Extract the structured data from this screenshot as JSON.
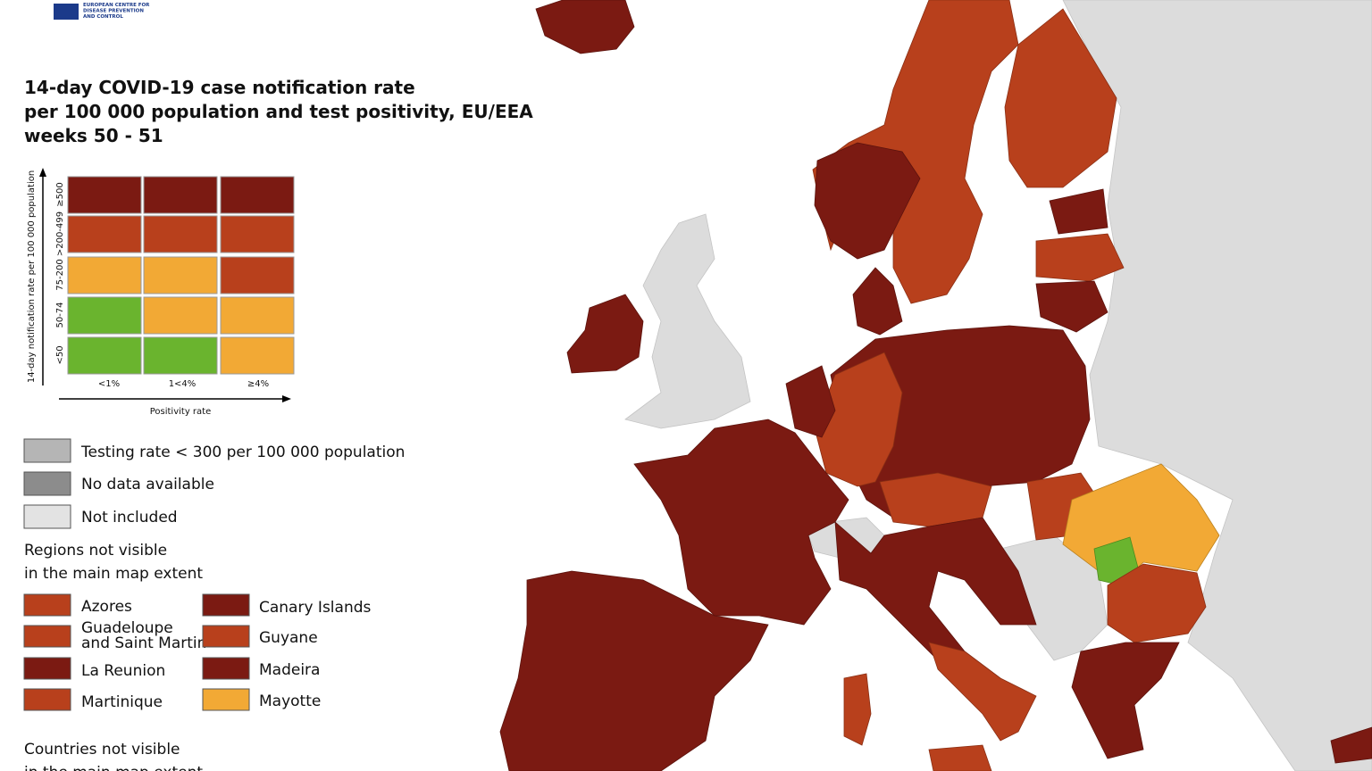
{
  "header": {
    "logo": [
      "EUROPEAN CENTRE FOR",
      "DISEASE PREVENTION",
      "AND CONTROL"
    ],
    "title": [
      "14-day COVID-19 case notification rate",
      "per 100 000 population and test positivity, EU/EEA",
      "weeks 50 - 51"
    ]
  },
  "matrix": {
    "y_axis_label": "14-day notification rate per 100 000 population",
    "rows": [
      "≥500",
      ">200-499",
      "75-200",
      "50-74",
      "<50"
    ],
    "columns": [
      "<1%",
      "1<4%",
      "≥4%"
    ],
    "x_axis_label": "Positivity rate"
  },
  "legend": [
    "Testing rate < 300 per 100 000 population",
    "No data available",
    "Not included"
  ],
  "regions": {
    "heading": [
      "Regions not visible",
      "in the main map extent"
    ],
    "items": [
      "Azores",
      "Guadeloupe",
      "and Saint Martin",
      "La Reunion",
      "Martinique",
      "Canary Islands",
      "Guyane",
      "Madeira",
      "Mayotte"
    ]
  },
  "countries": {
    "heading": [
      "Countries not visible",
      "in the main map extent"
    ]
  }
}
